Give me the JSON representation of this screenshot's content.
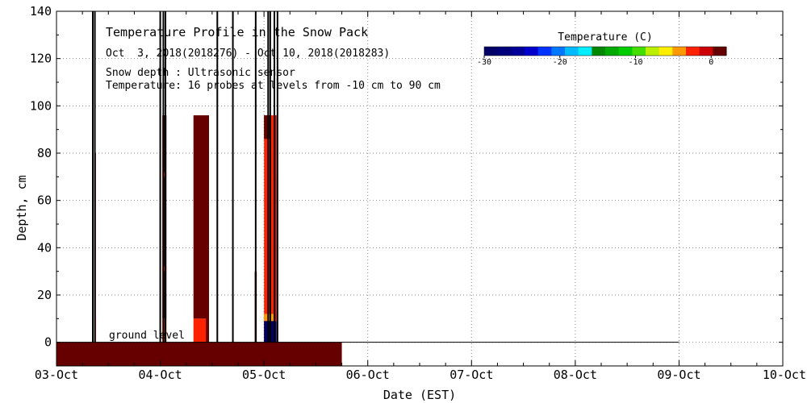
{
  "chart_data": {
    "type": "heatmap",
    "title": "Temperature Profile in the Snow Pack",
    "subtitle": "Oct  3, 2018(2018276) - Oct 10, 2018(2018283)",
    "notes": [
      "Snow depth : Ultrasonic sensor",
      "Temperature: 16 probes at levels from -10 cm to 90 cm"
    ],
    "xlabel": "Date (EST)",
    "ylabel": "Depth, cm",
    "x_ticks": [
      "03-Oct",
      "04-Oct",
      "05-Oct",
      "06-Oct",
      "07-Oct",
      "08-Oct",
      "09-Oct",
      "10-Oct"
    ],
    "xlim_days": [
      0,
      7
    ],
    "ylim": [
      -10,
      140
    ],
    "y_ticks": [
      0,
      20,
      40,
      60,
      80,
      100,
      120,
      140
    ],
    "grid": true,
    "ground_label": "ground level",
    "colorbar": {
      "title": "Temperature (C)",
      "range": [
        -30,
        2
      ],
      "tick_values": [
        -30,
        -20,
        -10,
        0
      ],
      "tick_labels": [
        "-30",
        "-20",
        "-10",
        "0"
      ],
      "colors": [
        "#000066",
        "#00007a",
        "#000099",
        "#0000cc",
        "#0033ff",
        "#0077ff",
        "#00bbff",
        "#00eeff",
        "#008800",
        "#00aa00",
        "#00cc00",
        "#44dd00",
        "#bbee00",
        "#ffee00",
        "#ff9900",
        "#ff2200",
        "#cc0000",
        "#660000"
      ]
    },
    "ground_layer": {
      "start_day": 0,
      "end_day": 2.75,
      "depth_from": -10,
      "depth_to": 0,
      "temp_c": 1,
      "color": "#660000"
    },
    "ground_line_end_day": 6.0,
    "temperature_blocks": [
      {
        "start_day": 0.37,
        "end_day": 0.38,
        "depth_from": 0,
        "depth_to": 80,
        "temp_c": 1,
        "color": "#660000"
      },
      {
        "start_day": 0.37,
        "end_day": 0.38,
        "depth_from": 0,
        "depth_to": 10,
        "temp_c": -1,
        "color": "#ff2200"
      },
      {
        "start_day": 1.02,
        "end_day": 1.06,
        "depth_from": 10,
        "depth_to": 96,
        "temp_c": 1,
        "color": "#660000"
      },
      {
        "start_day": 1.02,
        "end_day": 1.06,
        "depth_from": 0,
        "depth_to": 10,
        "temp_c": -1,
        "color": "#ff2200"
      },
      {
        "start_day": 1.02,
        "end_day": 1.06,
        "depth_from": 30,
        "depth_to": 32,
        "temp_c": -1,
        "color": "#ff2200"
      },
      {
        "start_day": 1.02,
        "end_day": 1.06,
        "depth_from": 70,
        "depth_to": 72,
        "temp_c": -1,
        "color": "#ff2200"
      },
      {
        "start_day": 1.32,
        "end_day": 1.47,
        "depth_from": 10,
        "depth_to": 96,
        "temp_c": 1,
        "color": "#660000"
      },
      {
        "start_day": 1.32,
        "end_day": 1.47,
        "depth_from": 0,
        "depth_to": 10,
        "temp_c": -1,
        "color": "#ff2200"
      },
      {
        "start_day": 1.44,
        "end_day": 1.47,
        "depth_from": 0,
        "depth_to": 70,
        "temp_c": 1,
        "color": "#660000"
      },
      {
        "start_day": 1.91,
        "end_day": 1.93,
        "depth_from": 0,
        "depth_to": 30,
        "temp_c": 1,
        "color": "#660000"
      },
      {
        "start_day": 2.08,
        "end_day": 2.12,
        "depth_from": 0,
        "depth_to": 70,
        "temp_c": 1,
        "color": "#660000"
      },
      {
        "start_day": 2.0,
        "end_day": 2.12,
        "depth_from": 0,
        "depth_to": 96,
        "temp_c": -1,
        "color": "#ff2200"
      },
      {
        "start_day": 2.0,
        "end_day": 2.06,
        "depth_from": 86,
        "depth_to": 96,
        "temp_c": 1,
        "color": "#660000"
      },
      {
        "start_day": 2.0,
        "end_day": 2.12,
        "depth_from": 0,
        "depth_to": 9,
        "temp_c": -28,
        "color": "#000066"
      },
      {
        "start_day": 2.0,
        "end_day": 2.12,
        "depth_from": 9,
        "depth_to": 12,
        "temp_c": -2,
        "color": "#ff9900"
      },
      {
        "start_day": 2.1,
        "end_day": 2.12,
        "depth_from": 9,
        "depth_to": 96,
        "temp_c": 0,
        "color": "#cc0000"
      }
    ],
    "snow_depth_spikes_days": [
      0.35,
      0.37,
      1.0,
      1.03,
      1.05,
      1.55,
      1.7,
      1.92,
      2.04,
      2.06,
      2.1,
      2.13
    ]
  }
}
